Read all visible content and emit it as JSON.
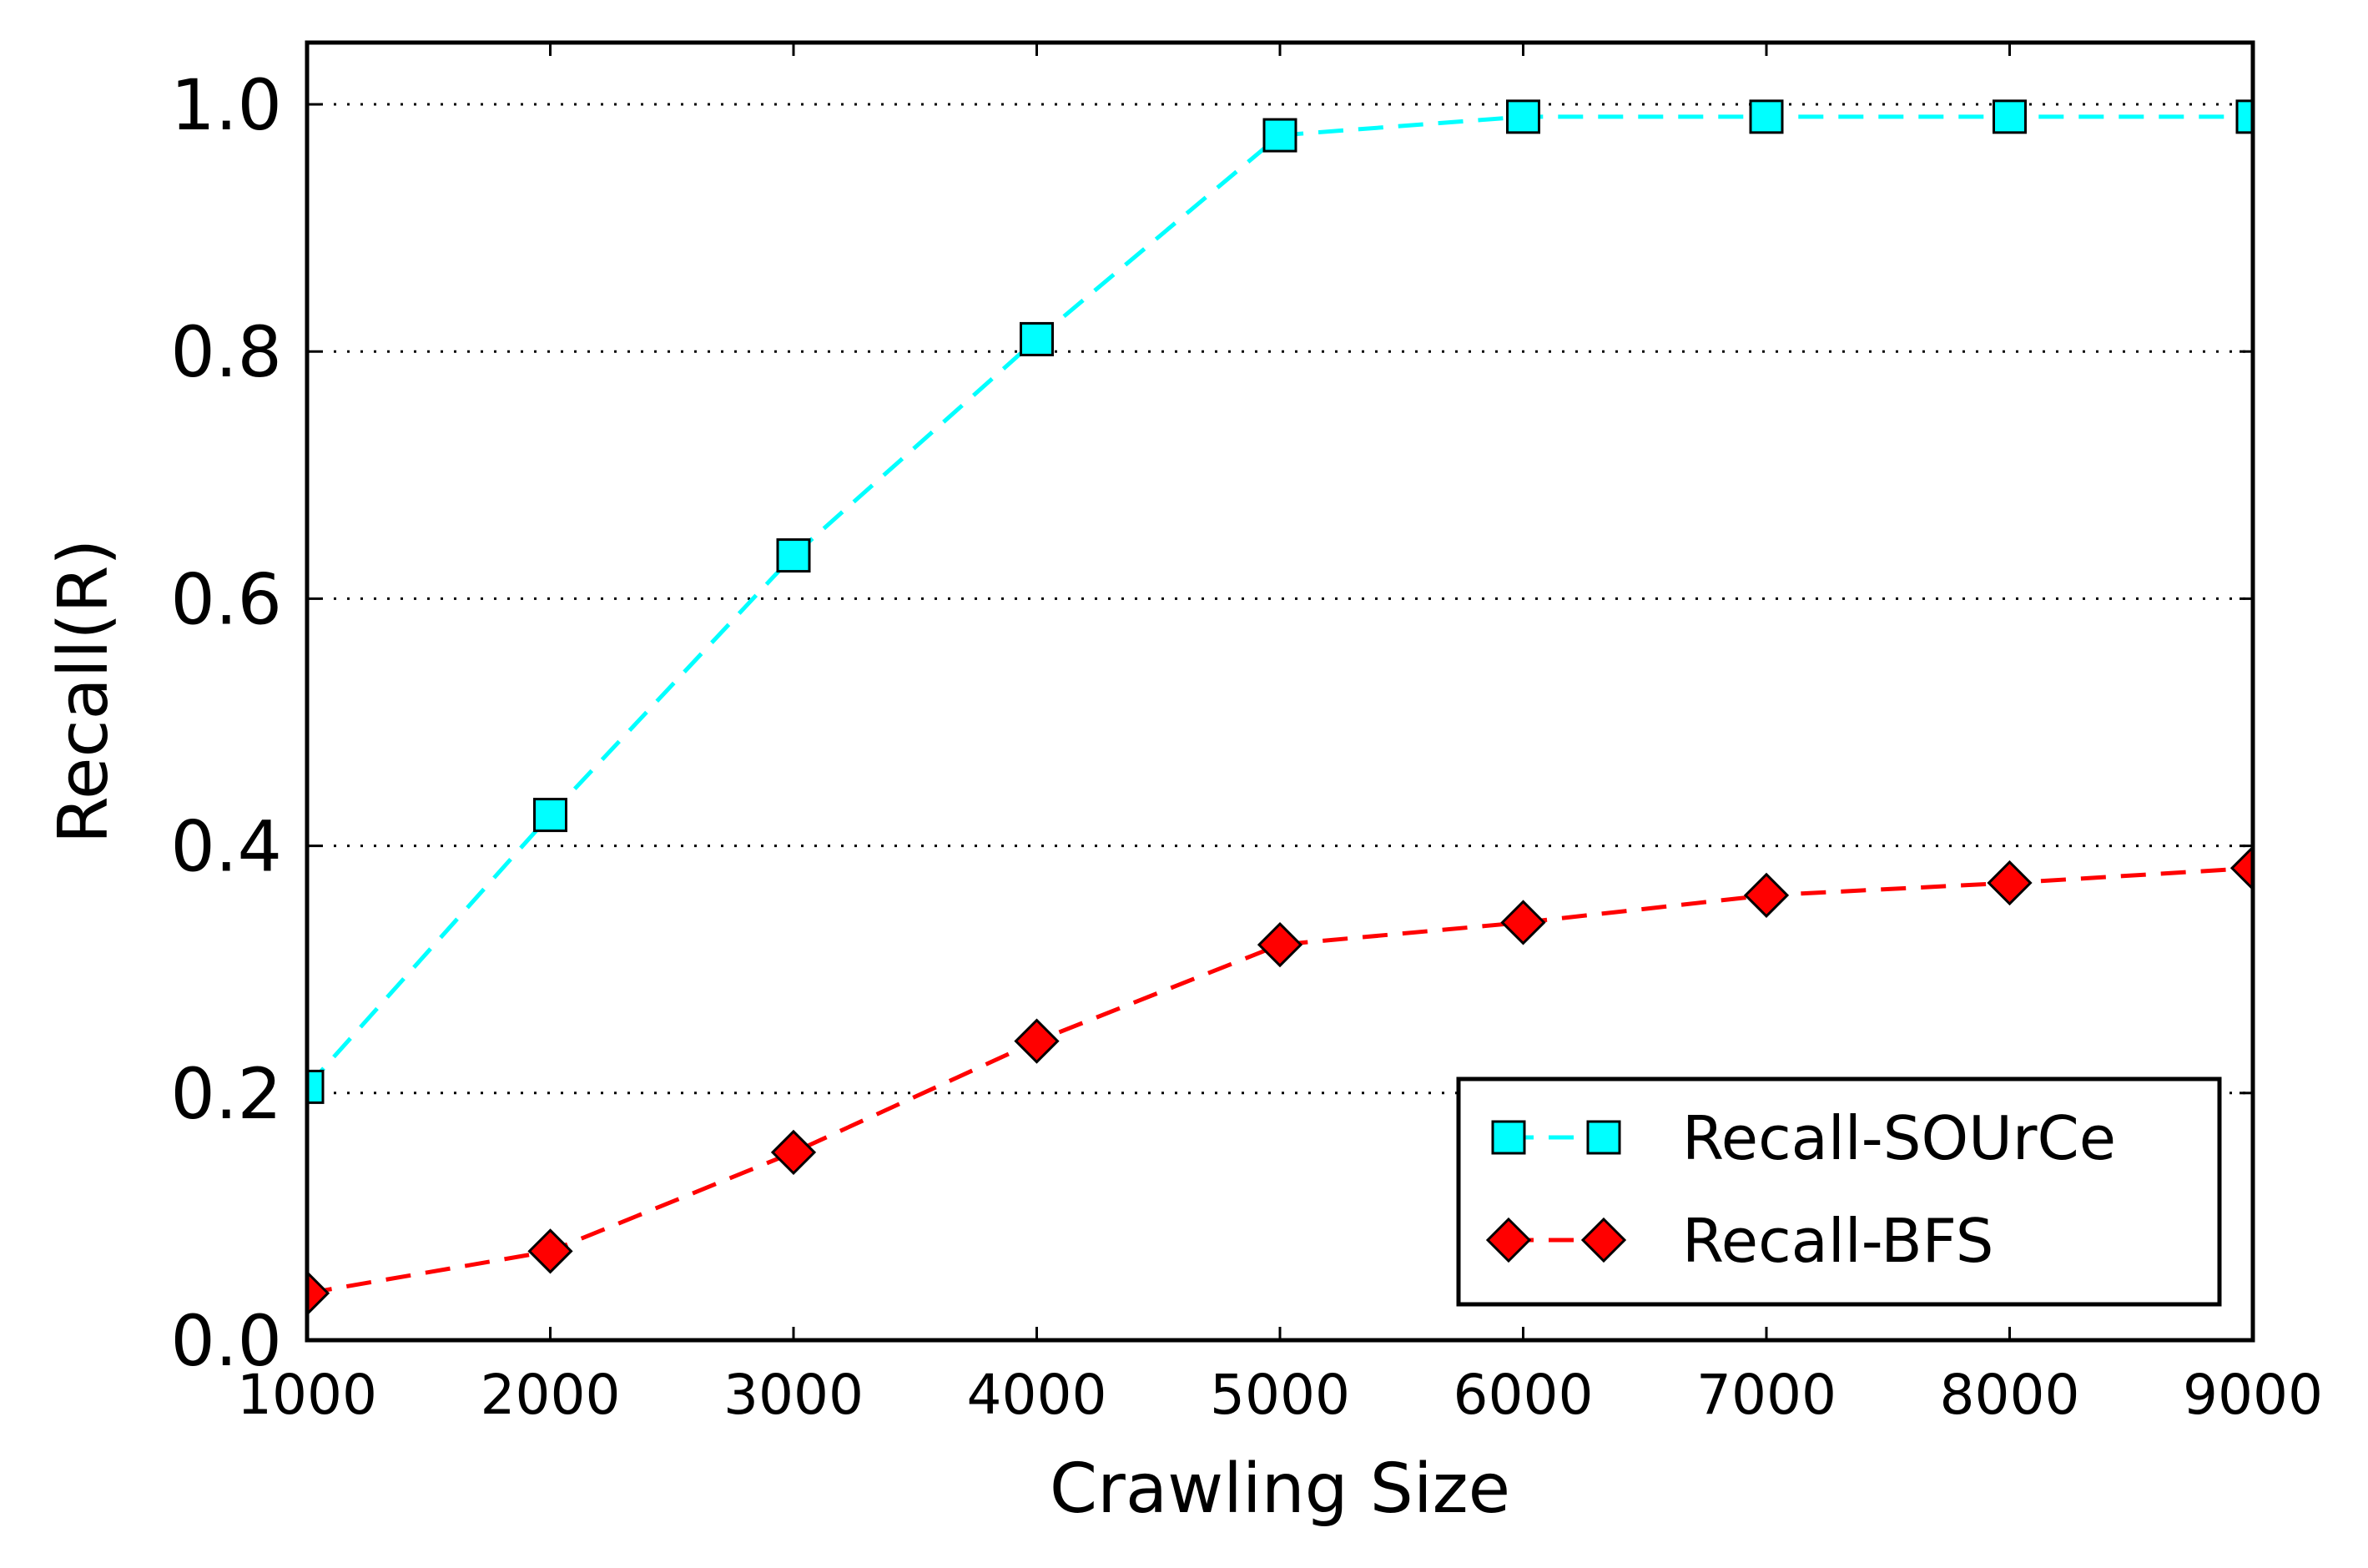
{
  "chart_data": {
    "type": "line",
    "title": "",
    "xlabel": "Crawling Size",
    "ylabel": "Recall(R)",
    "x": [
      1000,
      2000,
      3000,
      4000,
      5000,
      6000,
      7000,
      8000,
      9000
    ],
    "xlim": [
      1000,
      9000
    ],
    "ylim": [
      0.0,
      1.05
    ],
    "x_ticks": [
      "1000",
      "2000",
      "3000",
      "4000",
      "5000",
      "6000",
      "7000",
      "8000",
      "9000"
    ],
    "y_ticks": [
      "0.0",
      "0.2",
      "0.4",
      "0.6",
      "0.8",
      "1.0"
    ],
    "y_tick_values": [
      0.0,
      0.2,
      0.4,
      0.6,
      0.8,
      1.0
    ],
    "grid": "horizontal dotted",
    "legend_position": "lower-right",
    "series": [
      {
        "name": "Recall-SOUrCe",
        "values": [
          0.205,
          0.425,
          0.635,
          0.81,
          0.975,
          0.99,
          0.99,
          0.99,
          0.99
        ],
        "color": "#00ffff",
        "marker": "square",
        "line_style": "dashed"
      },
      {
        "name": "Recall-BFS",
        "values": [
          0.038,
          0.072,
          0.152,
          0.242,
          0.32,
          0.338,
          0.36,
          0.37,
          0.382
        ],
        "color": "#ff0000",
        "marker": "diamond",
        "line_style": "dashed"
      }
    ]
  }
}
